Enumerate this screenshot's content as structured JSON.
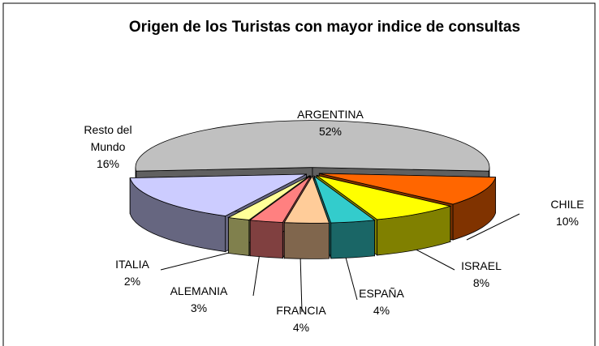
{
  "chart_data": {
    "type": "pie3d",
    "title": "Origen de los Turistas con mayor indice de consultas",
    "categories": [
      "ARGENTINA",
      "CHILE",
      "ISRAEL",
      "ESPAÑA",
      "FRANCIA",
      "ALEMANIA",
      "ITALIA",
      "Resto del Mundo"
    ],
    "values": [
      52,
      10,
      8,
      4,
      4,
      3,
      2,
      16
    ],
    "value_labels": [
      "52%",
      "10%",
      "8%",
      "4%",
      "4%",
      "3%",
      "2%",
      "16%"
    ],
    "colors": [
      "#c0c0c0",
      "#ff6600",
      "#ffff00",
      "#33cccc",
      "#ffcc99",
      "#ff8080",
      "#ffff99",
      "#ccccff"
    ]
  }
}
